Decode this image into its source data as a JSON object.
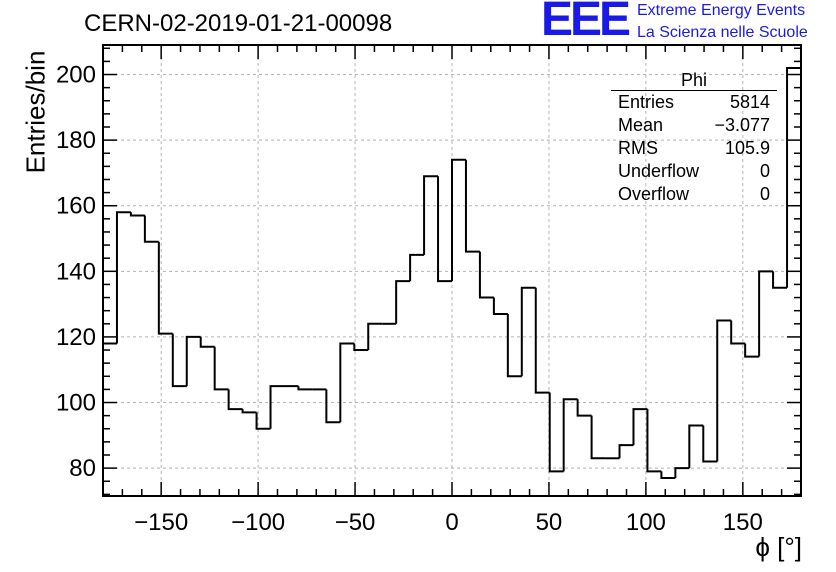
{
  "header": {
    "run_title": "CERN-02-2019-01-21-00098",
    "logo_text": "EEE",
    "logo_line1": "Extreme Energy Events",
    "logo_line2": "La Scienza nelle Scuole",
    "logo_color": "#1a1ae6"
  },
  "stats": {
    "title": "Phi",
    "rows": [
      {
        "label": "Entries",
        "value": "5814"
      },
      {
        "label": "Mean",
        "value": "−3.077"
      },
      {
        "label": "RMS",
        "value": "105.9"
      },
      {
        "label": "Underflow",
        "value": "0"
      },
      {
        "label": "Overflow",
        "value": "0"
      }
    ]
  },
  "chart_data": {
    "type": "histogram",
    "title": "CERN-02-2019-01-21-00098",
    "xlabel": "ϕ [°]",
    "ylabel": "Entries/bin",
    "bin_width": 7.2,
    "xlim": [
      -180,
      180
    ],
    "ylim": [
      71.5,
      209
    ],
    "grid": true,
    "x_ticks": [
      -150,
      -100,
      -50,
      0,
      50,
      100,
      150
    ],
    "x_tick_labels": [
      "−150",
      "−100",
      "−50",
      "0",
      "50",
      "100",
      "150"
    ],
    "y_ticks": [
      80,
      100,
      120,
      140,
      160,
      180,
      200
    ],
    "y_tick_labels": [
      "80",
      "100",
      "120",
      "140",
      "160",
      "180",
      "200"
    ],
    "values": [
      118,
      158,
      157,
      149,
      121,
      105,
      120,
      117,
      104,
      98,
      97,
      92,
      105,
      105,
      104,
      104,
      94,
      118,
      116,
      124,
      124,
      137,
      145,
      169,
      137,
      174,
      146,
      132,
      127,
      108,
      135,
      103,
      79,
      101,
      96,
      83,
      83,
      87,
      98,
      79,
      77,
      80,
      93,
      82,
      125,
      118,
      114,
      140,
      135,
      202
    ],
    "line_color": "#000000"
  }
}
